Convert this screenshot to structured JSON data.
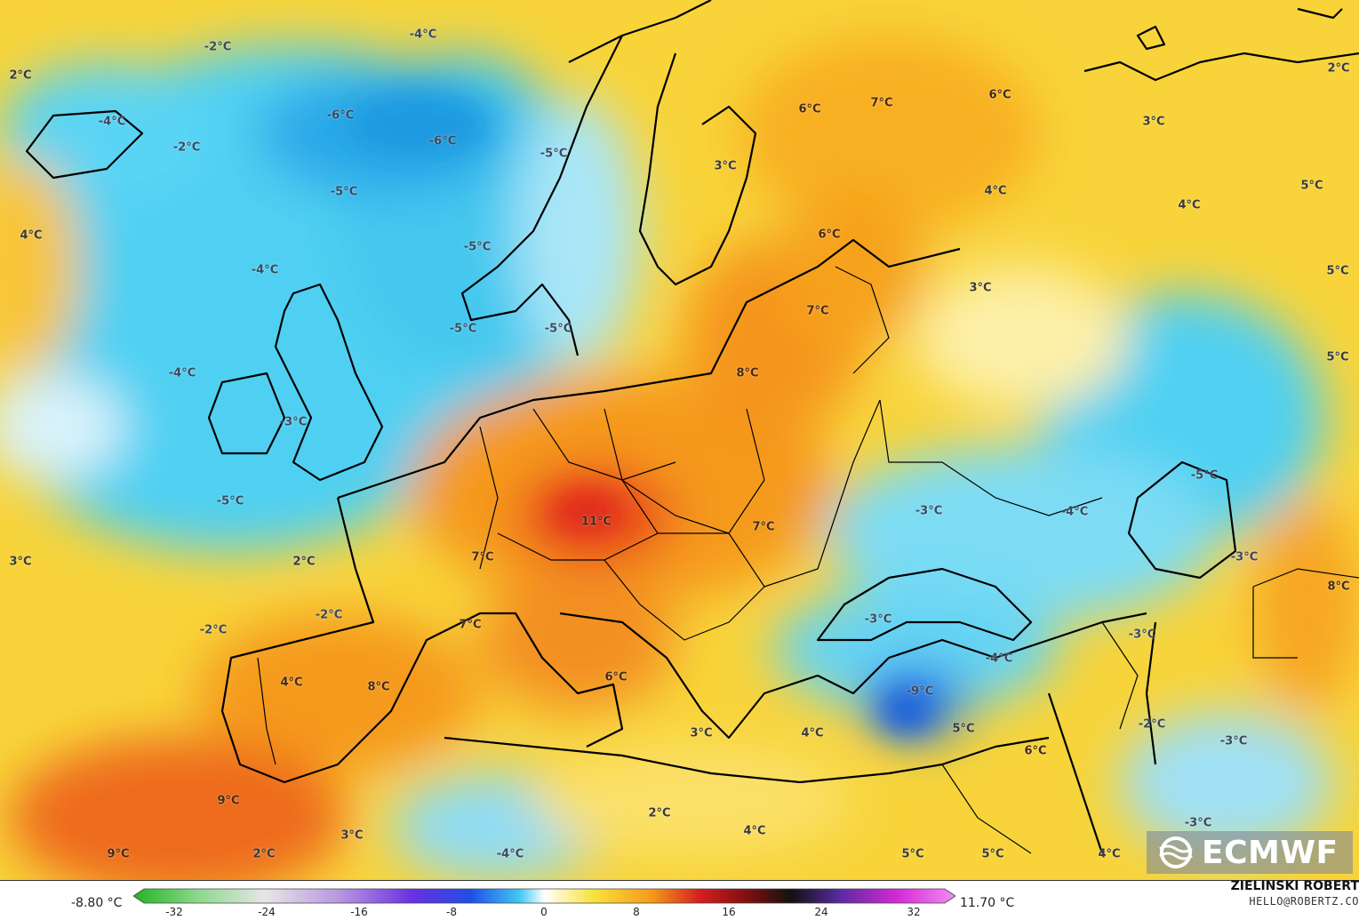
{
  "map": {
    "labels": [
      {
        "text": "-2°C"
      },
      {
        "text": "-4°C"
      },
      {
        "text": "2°C"
      },
      {
        "text": "-4°C"
      },
      {
        "text": "-2°C"
      },
      {
        "text": "-6°C"
      },
      {
        "text": "-6°C"
      },
      {
        "text": "-5°C"
      },
      {
        "text": "-5°C"
      },
      {
        "text": "-5°C"
      },
      {
        "text": "-4°C"
      },
      {
        "text": "4°C"
      },
      {
        "text": "-5°C"
      },
      {
        "text": "-5°C"
      },
      {
        "text": "-4°C"
      },
      {
        "text": "-3°C"
      },
      {
        "text": "-5°C"
      },
      {
        "text": "3°C"
      },
      {
        "text": "2°C"
      },
      {
        "text": "-2°C"
      },
      {
        "text": "-2°C"
      },
      {
        "text": "7°C"
      },
      {
        "text": "7°C"
      },
      {
        "text": "4°C"
      },
      {
        "text": "8°C"
      },
      {
        "text": "9°C"
      },
      {
        "text": "9°C"
      },
      {
        "text": "2°C"
      },
      {
        "text": "3°C"
      },
      {
        "text": "11°C"
      },
      {
        "text": "8°C"
      },
      {
        "text": "7°C"
      },
      {
        "text": "6°C"
      },
      {
        "text": "3°C"
      },
      {
        "text": "3°C"
      },
      {
        "text": "4°C"
      },
      {
        "text": "2°C"
      },
      {
        "text": "-4°C"
      },
      {
        "text": "4°C"
      },
      {
        "text": "6°C"
      },
      {
        "text": "7°C"
      },
      {
        "text": "6°C"
      },
      {
        "text": "7°C"
      },
      {
        "text": "6°C"
      },
      {
        "text": "4°C"
      },
      {
        "text": "3°C"
      },
      {
        "text": "3°C"
      },
      {
        "text": "4°C"
      },
      {
        "text": "2°C"
      },
      {
        "text": "5°C"
      },
      {
        "text": "5°C"
      },
      {
        "text": "5°C"
      },
      {
        "text": "-3°C"
      },
      {
        "text": "-4°C"
      },
      {
        "text": "-5°C"
      },
      {
        "text": "-3°C"
      },
      {
        "text": "-3°C"
      },
      {
        "text": "-4°C"
      },
      {
        "text": "-9°C"
      },
      {
        "text": "5°C"
      },
      {
        "text": "6°C"
      },
      {
        "text": "-3°C"
      },
      {
        "text": "-2°C"
      },
      {
        "text": "-3°C"
      },
      {
        "text": "8°C"
      },
      {
        "text": "-3°C"
      },
      {
        "text": "5°C"
      },
      {
        "text": "5°C"
      },
      {
        "text": "4°C"
      }
    ]
  },
  "logo": {
    "text": "ECMWF"
  },
  "colorbar": {
    "min_label": "-8.80 °C",
    "max_label": "11.70 °C",
    "ticks": [
      "-32",
      "-24",
      "-16",
      "-8",
      "0",
      "8",
      "16",
      "24",
      "32"
    ]
  },
  "credit": {
    "name": "ZIELINSKI ROBERT",
    "email": "HELLO@ROBERTZ.CO"
  }
}
